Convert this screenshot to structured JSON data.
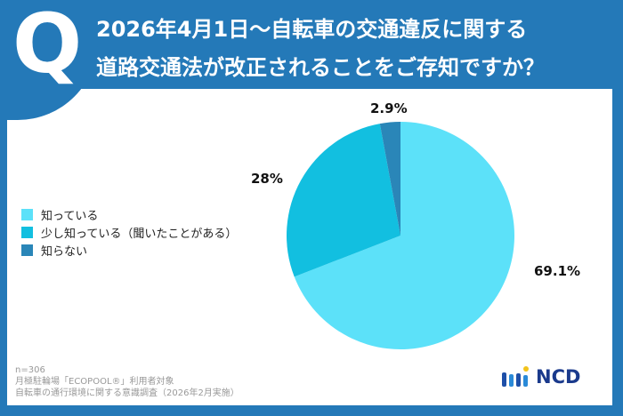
{
  "header": {
    "q": "Q",
    "line1": "2026年4月1日〜自転車の交通違反に関する",
    "line2": "道路交通法が改正されることをご存知ですか？"
  },
  "chart_data": {
    "type": "pie",
    "categories": [
      "知っている",
      "少し知っている（聞いたことがある）",
      "知らない"
    ],
    "values": [
      69.1,
      28,
      2.9
    ],
    "labels": [
      "69.1%",
      "28%",
      "2.9%"
    ],
    "colors": [
      "#5ce1f9",
      "#12bfe0",
      "#2a86b8"
    ],
    "legend": "left",
    "start": "top",
    "direction": "clockwise"
  },
  "footer": {
    "n": "n=306",
    "line2": "月極駐輪場「ECOPOOL®」利用者対象",
    "line3": "自転車の通行環境に関する意識調査（2026年2月実施）"
  },
  "logo": {
    "text": "NCD"
  }
}
